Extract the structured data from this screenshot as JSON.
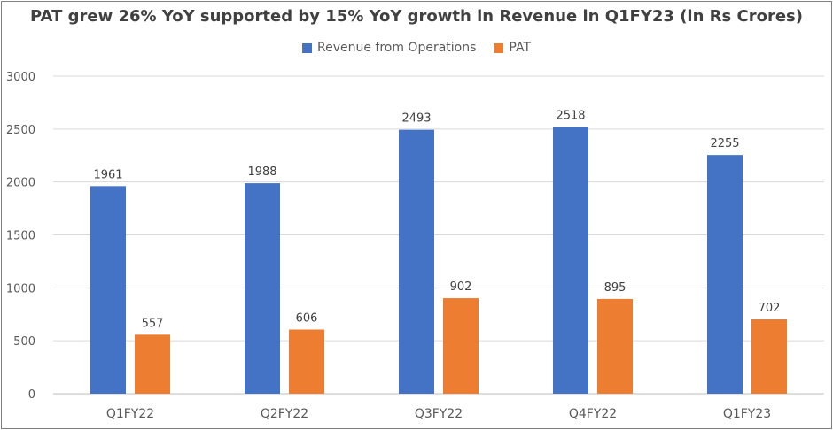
{
  "chart_data": {
    "type": "bar",
    "title": "PAT grew 26% YoY supported by 15% YoY growth in Revenue in Q1FY23 (in Rs Crores)",
    "xlabel": "",
    "ylabel": "",
    "ylim": [
      0,
      3000
    ],
    "yticks": [
      0,
      500,
      1000,
      1500,
      2000,
      2500,
      3000
    ],
    "grid": true,
    "legend_position": "top",
    "categories": [
      "Q1FY22",
      "Q2FY22",
      "Q3FY22",
      "Q4FY22",
      "Q1FY23"
    ],
    "series": [
      {
        "name": "Revenue from Operations",
        "color": "#4472C4",
        "values": [
          1961,
          1988,
          2493,
          2518,
          2255
        ]
      },
      {
        "name": "PAT",
        "color": "#ED7D31",
        "values": [
          557,
          606,
          902,
          895,
          702
        ]
      }
    ]
  }
}
